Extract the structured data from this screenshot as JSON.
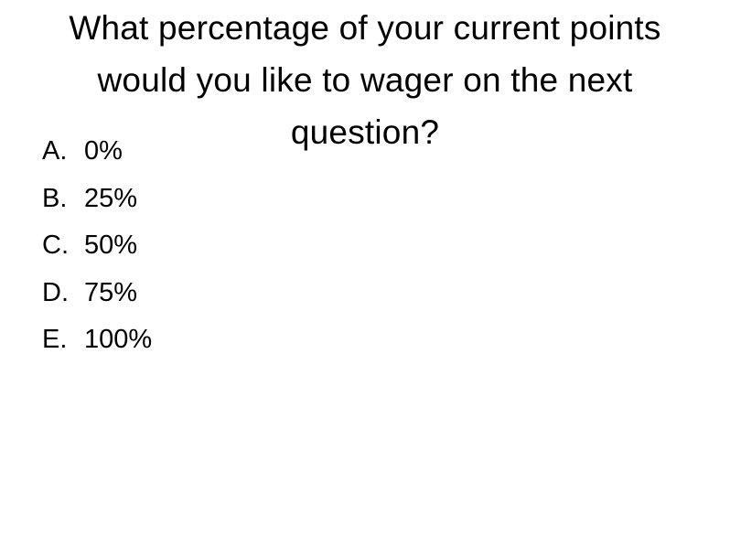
{
  "slide": {
    "title": "What percentage of your current points would you like to wager on the next question?",
    "options": [
      {
        "letter": "A.",
        "text": "0%"
      },
      {
        "letter": "B.",
        "text": "25%"
      },
      {
        "letter": "C.",
        "text": "50%"
      },
      {
        "letter": "D.",
        "text": "75%"
      },
      {
        "letter": "E.",
        "text": "100%"
      }
    ]
  }
}
